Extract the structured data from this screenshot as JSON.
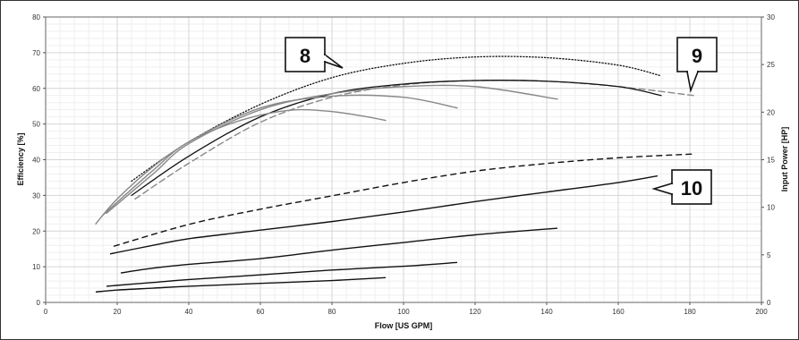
{
  "chart_data": {
    "type": "line",
    "xlabel": "Flow [US GPM]",
    "ylabel_left": "Efficiency [%]",
    "ylabel_right": "Input Power [HP]",
    "xlim": [
      0,
      200
    ],
    "ylim_left": [
      0,
      80
    ],
    "ylim_right": [
      0,
      30
    ],
    "x_ticks": [
      "0",
      "20",
      "40",
      "60",
      "80",
      "100",
      "120",
      "140",
      "160",
      "180",
      "200"
    ],
    "y_ticks_left": [
      "0",
      "10",
      "20",
      "30",
      "40",
      "50",
      "60",
      "70",
      "80"
    ],
    "y_ticks_right": [
      "0",
      "5",
      "10",
      "15",
      "20",
      "25",
      "30"
    ],
    "grid": true,
    "efficiency_series": [
      {
        "style": "dotted",
        "color": "#111111",
        "axis": "left",
        "x": [
          24,
          40,
          60,
          80,
          100,
          120,
          140,
          160,
          172
        ],
        "y": [
          34,
          45,
          55.5,
          63,
          67,
          68.8,
          68.6,
          66.5,
          63.5
        ]
      },
      {
        "style": "dashed",
        "color": "#888888",
        "axis": "left",
        "x": [
          25,
          40,
          60,
          80,
          100,
          120,
          140,
          160,
          181
        ],
        "y": [
          29,
          39,
          50.5,
          57.5,
          61,
          62.2,
          62,
          60.5,
          58
        ]
      },
      {
        "style": "solid",
        "color": "#111111",
        "axis": "left",
        "x": [
          24,
          40,
          60,
          80,
          100,
          120,
          140,
          160,
          172
        ],
        "y": [
          30,
          41,
          52,
          58.5,
          61.2,
          62.2,
          62,
          60.5,
          58
        ]
      },
      {
        "style": "solid",
        "color": "#888888",
        "axis": "left",
        "x": [
          17,
          30,
          40,
          60,
          80,
          100,
          120,
          143
        ],
        "y": [
          25,
          36,
          44.5,
          54,
          58.5,
          60.5,
          60.5,
          57
        ]
      },
      {
        "style": "solid",
        "color": "#888888",
        "axis": "left",
        "x": [
          16,
          30,
          40,
          60,
          80,
          100,
          115
        ],
        "y": [
          24.5,
          37,
          45,
          54.5,
          57.8,
          57.5,
          54.5
        ]
      },
      {
        "style": "solid",
        "color": "#888888",
        "axis": "left",
        "x": [
          14,
          20,
          30,
          40,
          50,
          60,
          70,
          80,
          90,
          95
        ],
        "y": [
          22,
          29,
          38,
          45,
          49.5,
          52.5,
          54,
          53.5,
          52,
          51
        ]
      }
    ],
    "power_series": [
      {
        "style": "dashed",
        "color": "#111111",
        "axis": "right",
        "x": [
          19,
          40,
          60,
          80,
          100,
          120,
          140,
          160,
          181
        ],
        "y": [
          5.9,
          8.2,
          9.8,
          11.2,
          12.6,
          13.8,
          14.6,
          15.2,
          15.6
        ]
      },
      {
        "style": "solid",
        "color": "#111111",
        "axis": "right",
        "x": [
          18,
          30,
          40,
          60,
          80,
          100,
          120,
          140,
          160,
          171
        ],
        "y": [
          5.1,
          6.0,
          6.7,
          7.6,
          8.5,
          9.5,
          10.6,
          11.6,
          12.6,
          13.3
        ]
      },
      {
        "style": "solid",
        "color": "#111111",
        "axis": "right",
        "x": [
          21,
          30,
          40,
          60,
          80,
          100,
          120,
          143
        ],
        "y": [
          3.1,
          3.6,
          4.0,
          4.6,
          5.5,
          6.3,
          7.1,
          7.8
        ]
      },
      {
        "style": "solid",
        "color": "#111111",
        "axis": "right",
        "x": [
          17,
          30,
          40,
          60,
          80,
          100,
          115
        ],
        "y": [
          1.7,
          2.1,
          2.4,
          2.9,
          3.4,
          3.8,
          4.2
        ]
      },
      {
        "style": "solid",
        "color": "#111111",
        "axis": "right",
        "x": [
          14,
          20,
          30,
          40,
          60,
          80,
          95
        ],
        "y": [
          1.1,
          1.3,
          1.5,
          1.7,
          2.0,
          2.3,
          2.6
        ]
      }
    ],
    "annotations": [
      {
        "text": "8"
      },
      {
        "text": "9"
      },
      {
        "text": "10"
      }
    ]
  }
}
